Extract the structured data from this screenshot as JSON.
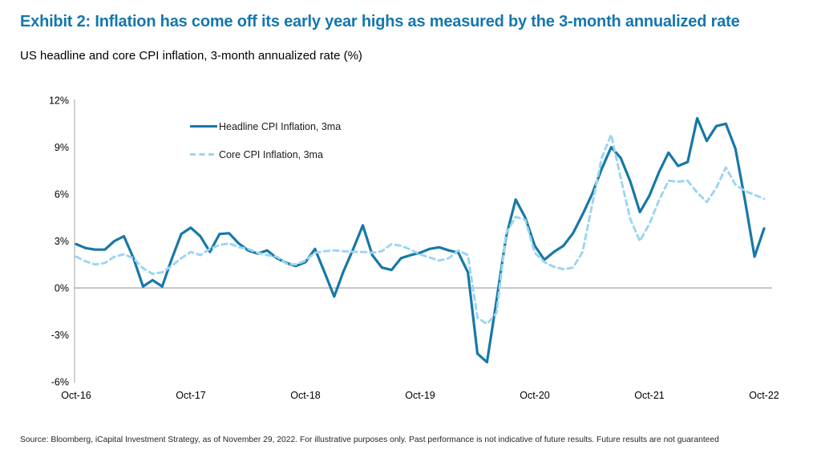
{
  "header": {
    "title": "Exhibit 2: Inflation has come off its early year highs as measured by the 3-month annualized rate",
    "subtitle": "US headline and core CPI inflation, 3-month annualized rate (%)"
  },
  "legend": {
    "headline_label": "Headline CPI Inflation, 3ma",
    "core_label": "Core CPI Inflation, 3ma"
  },
  "footer": {
    "source": "Source: Bloomberg, iCapital Investment Strategy, as of November 29, 2022. For illustrative purposes only. Past performance is not indicative of future results. Future results are not guaranteed"
  },
  "colors": {
    "headline_line": "#1778a8",
    "core_line": "#9bd5f1",
    "title_text": "#1577ad",
    "axis_line": "#a3a3a3",
    "zero_line": "#8f8f8f",
    "tick_text": "#000000"
  },
  "chart_data": {
    "type": "line",
    "title": "US headline and core CPI inflation, 3-month annualized rate (%)",
    "frequency": "monthly",
    "x_start": "Oct-2016",
    "x_end": "Oct-2022",
    "grid": false,
    "legend_position": "top-left-inside",
    "ylim": [
      -6,
      12
    ],
    "y_ticks": [
      {
        "label": "12%",
        "value": 12
      },
      {
        "label": "9%",
        "value": 9
      },
      {
        "label": "6%",
        "value": 6
      },
      {
        "label": "3%",
        "value": 3
      },
      {
        "label": "0%",
        "value": 0
      },
      {
        "label": "-3%",
        "value": -3
      },
      {
        "label": "-6%",
        "value": -6
      }
    ],
    "x_tick_labels": [
      "Oct-16",
      "Oct-17",
      "Oct-18",
      "Oct-19",
      "Oct-20",
      "Oct-21",
      "Oct-22"
    ],
    "series": [
      {
        "name": "Headline CPI Inflation, 3ma",
        "style": "solid",
        "color": "#1778a8",
        "values": [
          2.8,
          2.55,
          2.45,
          2.45,
          3.0,
          3.3,
          1.9,
          0.1,
          0.5,
          0.1,
          1.85,
          3.45,
          3.85,
          3.3,
          2.3,
          3.45,
          3.5,
          2.85,
          2.4,
          2.2,
          2.4,
          1.9,
          1.6,
          1.4,
          1.65,
          2.5,
          1.0,
          -0.55,
          1.1,
          2.5,
          4.0,
          2.1,
          1.3,
          1.15,
          1.9,
          2.1,
          2.25,
          2.5,
          2.6,
          2.4,
          2.25,
          1.0,
          -4.2,
          -4.75,
          -0.8,
          3.3,
          5.65,
          4.5,
          2.7,
          1.8,
          2.3,
          2.7,
          3.5,
          4.7,
          6.0,
          7.6,
          9.0,
          8.3,
          6.8,
          4.85,
          5.9,
          7.4,
          8.65,
          7.8,
          8.05,
          10.85,
          9.4,
          10.35,
          10.5,
          8.9,
          5.6,
          2.0,
          3.8
        ]
      },
      {
        "name": "Core CPI Inflation, 3ma",
        "style": "dashed",
        "color": "#9bd5f1",
        "values": [
          2.0,
          1.7,
          1.5,
          1.6,
          2.0,
          2.15,
          1.9,
          1.25,
          0.9,
          1.0,
          1.4,
          1.9,
          2.3,
          2.1,
          2.5,
          2.75,
          2.85,
          2.6,
          2.5,
          2.25,
          2.1,
          2.0,
          1.55,
          1.5,
          1.75,
          2.25,
          2.35,
          2.4,
          2.35,
          2.3,
          2.3,
          2.25,
          2.35,
          2.8,
          2.7,
          2.45,
          2.15,
          1.95,
          1.75,
          1.9,
          2.4,
          2.1,
          -1.9,
          -2.3,
          -1.6,
          3.5,
          4.55,
          4.35,
          2.25,
          1.65,
          1.35,
          1.2,
          1.3,
          2.3,
          5.3,
          8.3,
          9.8,
          7.0,
          4.4,
          3.0,
          4.1,
          5.6,
          6.85,
          6.8,
          6.85,
          6.1,
          5.5,
          6.4,
          7.7,
          6.6,
          6.2,
          5.95,
          5.7
        ]
      }
    ]
  }
}
